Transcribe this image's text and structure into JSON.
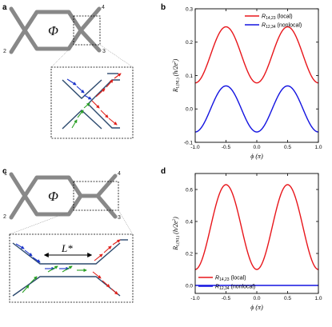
{
  "panel_labels": {
    "a": "a",
    "b": "b",
    "c": "c",
    "d": "d"
  },
  "flux_symbol": "Φ",
  "terminals": {
    "t1": "1",
    "t2": "2",
    "t3": "3",
    "t4": "4"
  },
  "length_label": "L*",
  "colors": {
    "device": "#888888",
    "edge": "#2c4a6e",
    "local": "#e8161b",
    "nonlocal": "#1414e0",
    "arrow_red": "#e0201a",
    "arrow_blue": "#1a33c9",
    "arrow_green": "#2aa024"
  },
  "chart_data": [
    {
      "panel": "b",
      "type": "line",
      "xlabel": "ϕ (π)",
      "ylabel": "R_L(NL) (h/2e²)",
      "xlim": [
        -1.0,
        1.0
      ],
      "ylim": [
        -0.1,
        0.3
      ],
      "xticks": [
        "-1.0",
        "-0.5",
        "0.0",
        "0.5",
        "1.0"
      ],
      "yticks": [
        "-0.1",
        "0.0",
        "0.1",
        "0.2",
        "0.3"
      ],
      "legend": "top-right",
      "series": [
        {
          "name": "R14,23 (local)",
          "name_main": "R",
          "name_sub": "14,23",
          "name_tail": " (local)",
          "color": "#e8161b",
          "mean": 0.162,
          "amplitude": 0.084,
          "shape": "cos2phi"
        },
        {
          "name": "R12,34 (nonlocal)",
          "name_main": "R",
          "name_sub": "12,34",
          "name_tail": " (nonlocal)",
          "color": "#1414e0",
          "mean": 0.0,
          "amplitude": 0.069,
          "shape": "cos2phi"
        }
      ]
    },
    {
      "panel": "d",
      "type": "line",
      "xlabel": "ϕ (π)",
      "ylabel": "R_L(NL) (h/2e²)",
      "xlim": [
        -1.0,
        1.0
      ],
      "ylim": [
        -0.05,
        0.7
      ],
      "xticks": [
        "-1.0",
        "-0.5",
        "0.0",
        "0.5",
        "1.0"
      ],
      "yticks": [
        "0.0",
        "0.2",
        "0.4",
        "0.6"
      ],
      "legend": "bottom-left",
      "series": [
        {
          "name": "R14,23 (local)",
          "name_main": "R",
          "name_sub": "14,23",
          "name_tail": " (local)",
          "color": "#e8161b",
          "mean": 0.365,
          "amplitude": 0.265,
          "shape": "cos2phi"
        },
        {
          "name": "R12,34 (nonlocal)",
          "name_main": "R",
          "name_sub": "12,34",
          "name_tail": " (nonlocal)",
          "color": "#1414e0",
          "mean": 0.0,
          "amplitude": 0.0,
          "shape": "flat"
        }
      ]
    }
  ]
}
